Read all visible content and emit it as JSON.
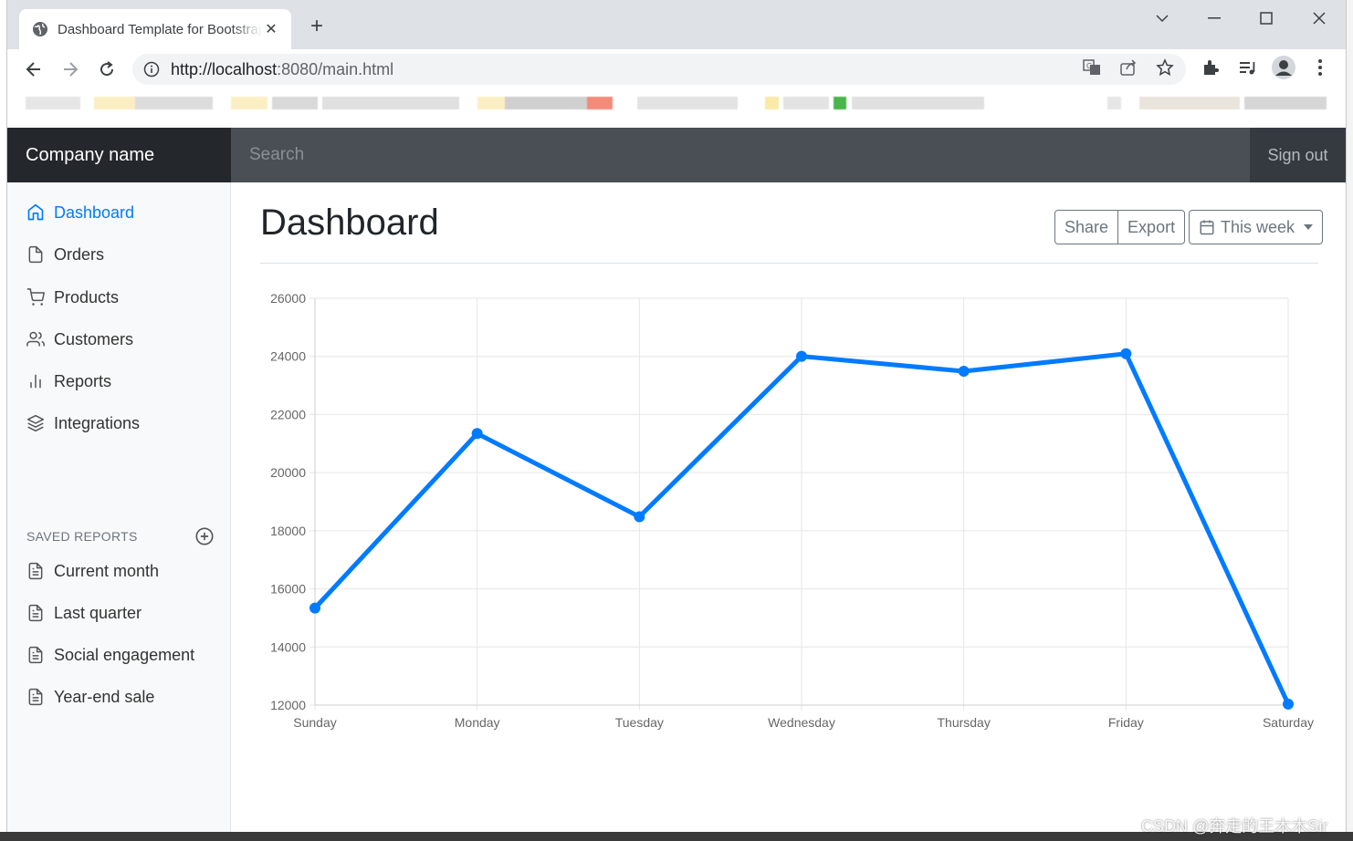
{
  "browser": {
    "tab_title": "Dashboard Template for Bootstrap",
    "tab_close": "✕",
    "new_tab": "+",
    "url_host": "http://localhost",
    "url_rest": ":8080/main.html"
  },
  "navbar": {
    "brand": "Company name",
    "search_placeholder": "Search",
    "sign_out": "Sign out"
  },
  "sidebar": {
    "items": [
      {
        "label": "Dashboard",
        "icon": "home-icon",
        "active": true
      },
      {
        "label": "Orders",
        "icon": "file-icon"
      },
      {
        "label": "Products",
        "icon": "shopping-cart-icon"
      },
      {
        "label": "Customers",
        "icon": "users-icon"
      },
      {
        "label": "Reports",
        "icon": "bar-chart-icon"
      },
      {
        "label": "Integrations",
        "icon": "layers-icon"
      }
    ],
    "saved_heading": "SAVED REPORTS",
    "saved_reports": [
      {
        "label": "Current month",
        "icon": "file-text-icon"
      },
      {
        "label": "Last quarter",
        "icon": "file-text-icon"
      },
      {
        "label": "Social engagement",
        "icon": "file-text-icon"
      },
      {
        "label": "Year-end sale",
        "icon": "file-text-icon"
      }
    ]
  },
  "main": {
    "title": "Dashboard",
    "share_label": "Share",
    "export_label": "Export",
    "period_label": "This week"
  },
  "chart_data": {
    "type": "line",
    "categories": [
      "Sunday",
      "Monday",
      "Tuesday",
      "Wednesday",
      "Thursday",
      "Friday",
      "Saturday"
    ],
    "series": [
      {
        "values": [
          15339,
          21345,
          18483,
          24003,
          23489,
          24092,
          12034
        ],
        "color": "#007bff"
      }
    ],
    "ylim": [
      12000,
      26000
    ],
    "yticks": [
      12000,
      14000,
      16000,
      18000,
      20000,
      22000,
      24000,
      26000
    ],
    "grid": true,
    "legend": "none"
  },
  "watermark": "CSDN @奔走的王木木Sir",
  "colors": {
    "accent": "#007bff",
    "navbar": "#343a40",
    "sidebar": "#f8f9fa"
  }
}
